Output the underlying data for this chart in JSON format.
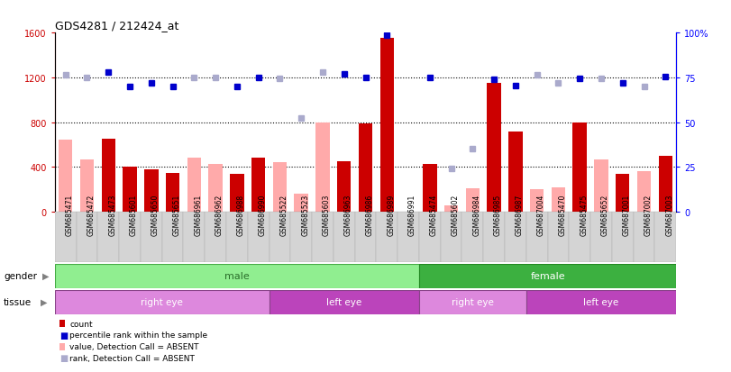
{
  "title": "GDS4281 / 212424_at",
  "samples": [
    "GSM685471",
    "GSM685472",
    "GSM685473",
    "GSM685601",
    "GSM685650",
    "GSM685651",
    "GSM686961",
    "GSM686962",
    "GSM686988",
    "GSM686990",
    "GSM685522",
    "GSM685523",
    "GSM685603",
    "GSM686963",
    "GSM686986",
    "GSM686989",
    "GSM686991",
    "GSM685474",
    "GSM685602",
    "GSM686984",
    "GSM686985",
    "GSM686987",
    "GSM687004",
    "GSM685470",
    "GSM685475",
    "GSM685652",
    "GSM687001",
    "GSM687002",
    "GSM687003"
  ],
  "count_values": [
    null,
    null,
    650,
    400,
    380,
    350,
    null,
    null,
    340,
    480,
    null,
    null,
    null,
    450,
    790,
    1550,
    null,
    430,
    null,
    null,
    1150,
    720,
    null,
    null,
    800,
    null,
    340,
    null,
    500
  ],
  "absent_value": [
    640,
    470,
    null,
    null,
    null,
    null,
    480,
    430,
    null,
    null,
    440,
    160,
    800,
    null,
    null,
    null,
    null,
    null,
    60,
    210,
    null,
    null,
    200,
    220,
    null,
    470,
    null,
    360,
    null
  ],
  "rank_present": [
    null,
    null,
    1250,
    1120,
    1150,
    1120,
    null,
    null,
    1120,
    1200,
    null,
    null,
    null,
    1230,
    1200,
    1580,
    null,
    1200,
    null,
    null,
    1180,
    1130,
    null,
    null,
    1190,
    null,
    1150,
    null,
    1210
  ],
  "rank_absent": [
    1220,
    1200,
    null,
    null,
    null,
    null,
    1200,
    1200,
    null,
    null,
    1190,
    840,
    1250,
    null,
    null,
    null,
    null,
    null,
    390,
    560,
    null,
    null,
    1220,
    1150,
    null,
    1190,
    null,
    1120,
    null
  ],
  "gender_male_count": 17,
  "gender_female_count": 12,
  "gender_male_label": "male",
  "gender_female_label": "female",
  "gender_male_color": "#90ee90",
  "gender_female_color": "#3cb040",
  "tissue_segments": [
    {
      "start": 0,
      "end": 10,
      "color": "#dd88dd",
      "label": "right eye"
    },
    {
      "start": 10,
      "end": 17,
      "color": "#bb44bb",
      "label": "left eye"
    },
    {
      "start": 17,
      "end": 22,
      "color": "#dd88dd",
      "label": "right eye"
    },
    {
      "start": 22,
      "end": 29,
      "color": "#bb44bb",
      "label": "left eye"
    }
  ],
  "ylim_left": [
    0,
    1600
  ],
  "yticks_left": [
    0,
    400,
    800,
    1200,
    1600
  ],
  "yticks_right_labels": [
    "0",
    "25",
    "50",
    "75",
    "100%"
  ],
  "yticks_right_vals": [
    0,
    400,
    800,
    1200,
    1600
  ],
  "hlines": [
    400,
    800,
    1200
  ],
  "color_count": "#cc0000",
  "color_rank_present": "#0000cc",
  "color_absent_value": "#ffaaaa",
  "color_rank_absent": "#aaaacc",
  "bar_width": 0.65,
  "marker_size": 5
}
